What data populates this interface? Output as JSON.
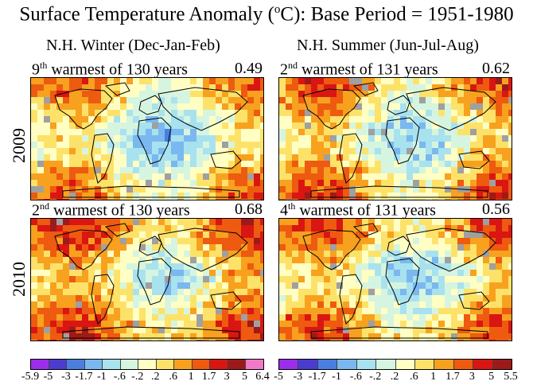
{
  "title": {
    "pre": "Surface Temperature Anomaly (",
    "sup": "o",
    "post": "C): Base Period = 1951-1980"
  },
  "columns": [
    {
      "title": "N.H. Winter (Dec-Jan-Feb)"
    },
    {
      "title": "N.H. Summer (Jun-Jul-Aug)"
    }
  ],
  "rows": [
    {
      "year": "2009"
    },
    {
      "year": "2010"
    }
  ],
  "panels": [
    {
      "rank": "9",
      "rank_sup": "th",
      "text": "warmest of 130 years",
      "value": "0.49"
    },
    {
      "rank": "2",
      "rank_sup": "nd",
      "text": "warmest of 131 years",
      "value": "0.62"
    },
    {
      "rank": "2",
      "rank_sup": "nd",
      "text": "warmest of 130 years",
      "value": "0.68"
    },
    {
      "rank": "4",
      "rank_sup": "th",
      "text": "warmest of 131 years",
      "value": "0.56"
    }
  ],
  "colors": {
    "scale": [
      "#9b2eea",
      "#4b3ccf",
      "#4a7fe0",
      "#7ab8ef",
      "#a8e2ef",
      "#d6f5e0",
      "#ffffc4",
      "#fde26a",
      "#f7a11f",
      "#ee5a10",
      "#d91612",
      "#9c1a1a",
      "#f07ac8"
    ],
    "missing": "#a0a0a0",
    "land": "#000000"
  },
  "scales": [
    {
      "ticks": [
        "-5.9",
        "-5",
        "-3",
        "-1.7",
        "-1",
        "-.6",
        "-.2",
        ".2",
        ".6",
        "1",
        "1.7",
        "3",
        "5",
        "6.4"
      ]
    },
    {
      "ticks": [
        "-5",
        "-3",
        "-1.7",
        "-1",
        "-.6",
        "-.2",
        ".2",
        ".6",
        "1",
        "1.7",
        "3",
        "5",
        "5.5"
      ]
    }
  ]
}
